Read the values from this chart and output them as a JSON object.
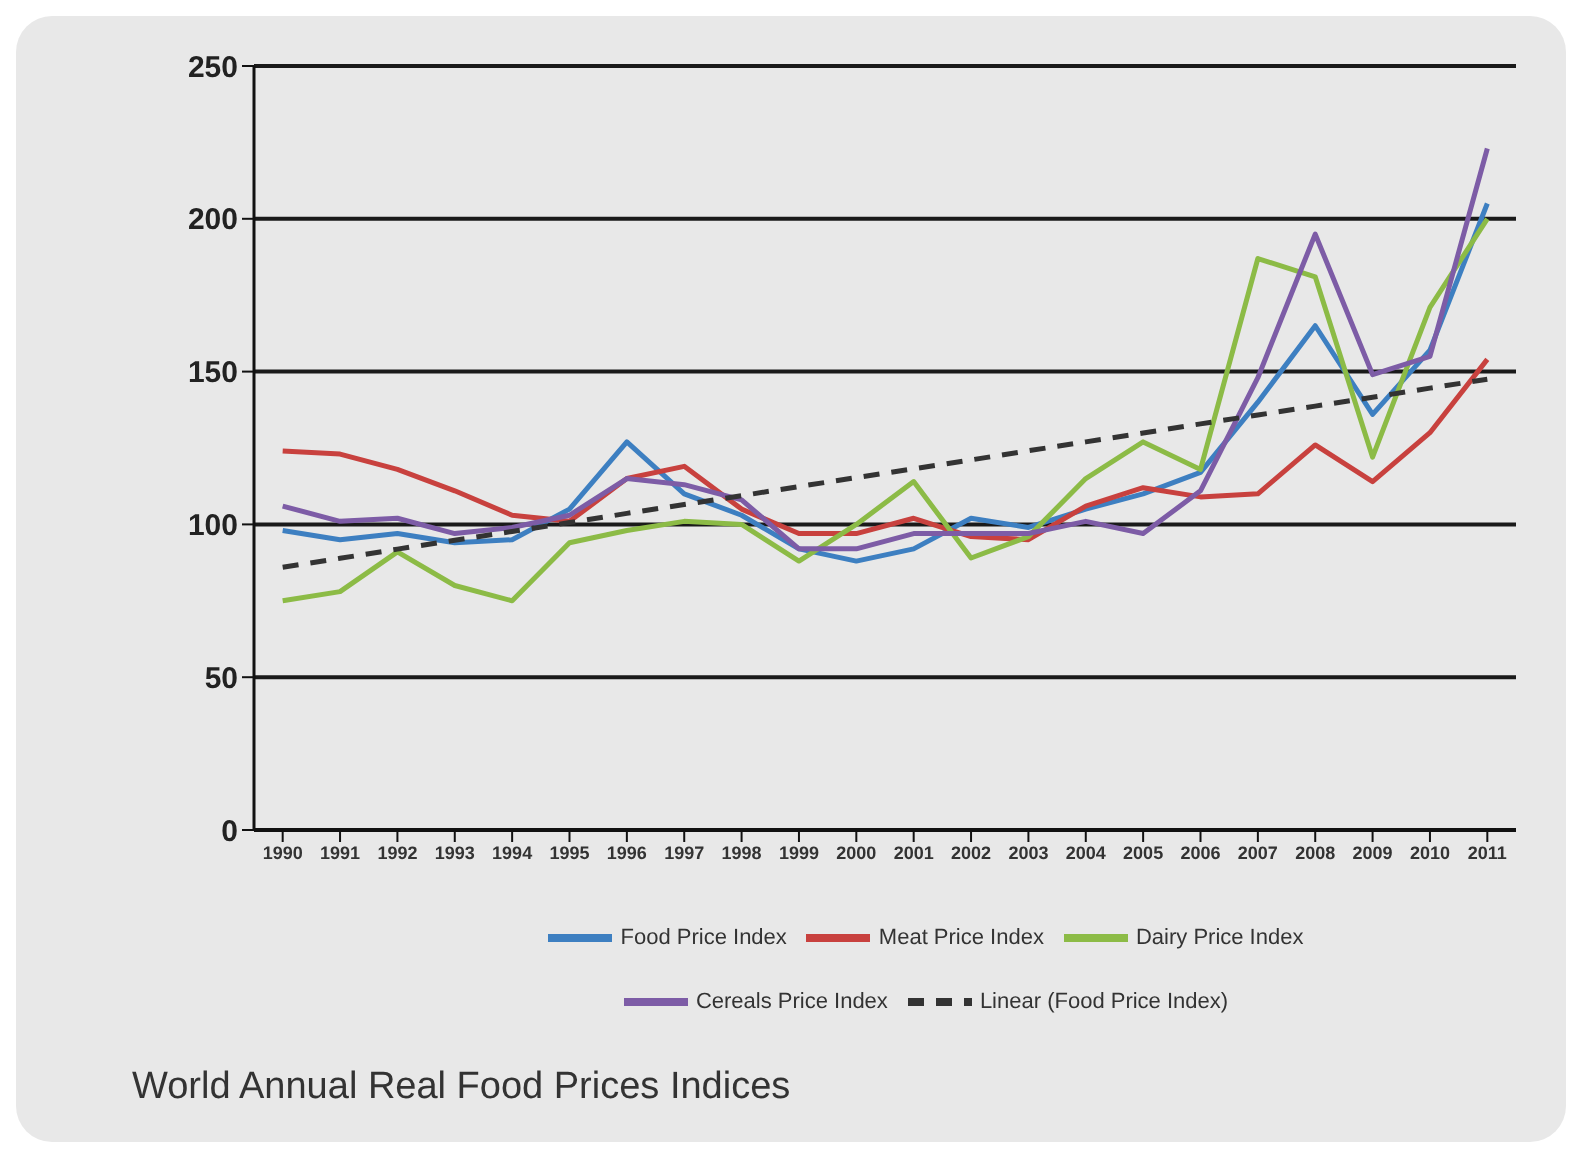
{
  "chart_data": {
    "type": "line",
    "title": "World Annual Real Food Prices Indices",
    "categories": [
      "1990",
      "1991",
      "1992",
      "1993",
      "1994",
      "1995",
      "1996",
      "1997",
      "1998",
      "1999",
      "2000",
      "2001",
      "2002",
      "2003",
      "2004",
      "2005",
      "2006",
      "2007",
      "2008",
      "2009",
      "2010",
      "2011"
    ],
    "series": [
      {
        "name": "Food Price Index",
        "color": "#3d7fc1",
        "values": [
          98,
          95,
          97,
          94,
          95,
          105,
          127,
          110,
          103,
          92,
          88,
          92,
          102,
          99,
          105,
          110,
          117,
          140,
          165,
          136,
          157,
          205
        ]
      },
      {
        "name": "Meat Price Index",
        "color": "#c8413e",
        "values": [
          124,
          123,
          118,
          111,
          103,
          101,
          115,
          119,
          105,
          97,
          97,
          102,
          96,
          95,
          106,
          112,
          109,
          110,
          126,
          114,
          130,
          154
        ]
      },
      {
        "name": "Dairy Price Index",
        "color": "#8cbb46",
        "values": [
          75,
          78,
          91,
          80,
          75,
          94,
          98,
          101,
          100,
          88,
          100,
          114,
          89,
          96,
          115,
          127,
          118,
          187,
          181,
          122,
          171,
          200
        ]
      },
      {
        "name": "Cereals Price Index",
        "color": "#7d5ca6",
        "values": [
          106,
          101,
          102,
          97,
          99,
          103,
          115,
          113,
          108,
          92,
          92,
          97,
          97,
          97,
          101,
          97,
          111,
          148,
          195,
          149,
          155,
          223
        ]
      },
      {
        "name": "Linear (Food Price Index)",
        "color": "#333333",
        "line_style": "dashed",
        "values": [
          86,
          88.9,
          91.9,
          94.8,
          97.7,
          100.6,
          103.6,
          106.5,
          109.4,
          112.4,
          115.3,
          118.2,
          121.1,
          124.1,
          127,
          129.9,
          132.9,
          135.8,
          138.7,
          141.6,
          144.6,
          147.5
        ]
      }
    ],
    "ylim": [
      0,
      250
    ],
    "yticks": [
      0,
      50,
      100,
      150,
      200,
      250
    ],
    "grid": "y",
    "legend": "bottom",
    "marker": "none",
    "line_style": "solid"
  }
}
